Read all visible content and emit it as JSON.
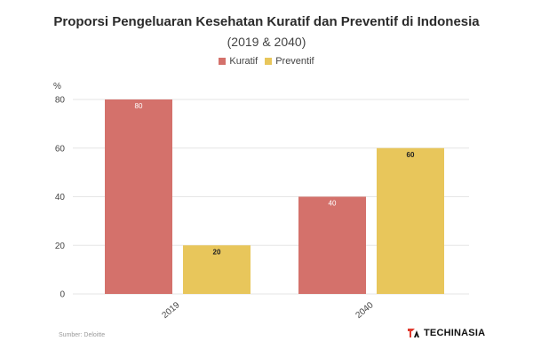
{
  "title": "Proporsi Pengeluaran Kesehatan Kuratif dan Preventif di Indonesia",
  "subtitle": "(2019 & 2040)",
  "source": "Sumber: Deloitte",
  "brand": "TECHINASIA",
  "chart_data": {
    "type": "bar",
    "title": "Proporsi Pengeluaran Kesehatan Kuratif dan Preventif di Indonesia",
    "subtitle": "(2019 & 2040)",
    "ylabel": "%",
    "xlabel": "",
    "categories": [
      "2019",
      "2040"
    ],
    "series": [
      {
        "name": "Kuratif",
        "values": [
          80,
          40
        ],
        "color": "#d4716b",
        "label_color": "#ffffff"
      },
      {
        "name": "Preventif",
        "values": [
          20,
          60
        ],
        "color": "#e8c65b",
        "label_color": "#222222"
      }
    ],
    "ylim": [
      0,
      80
    ],
    "yticks": [
      0,
      20,
      40,
      60,
      80
    ],
    "grid": true,
    "legend_position": "top-center"
  }
}
